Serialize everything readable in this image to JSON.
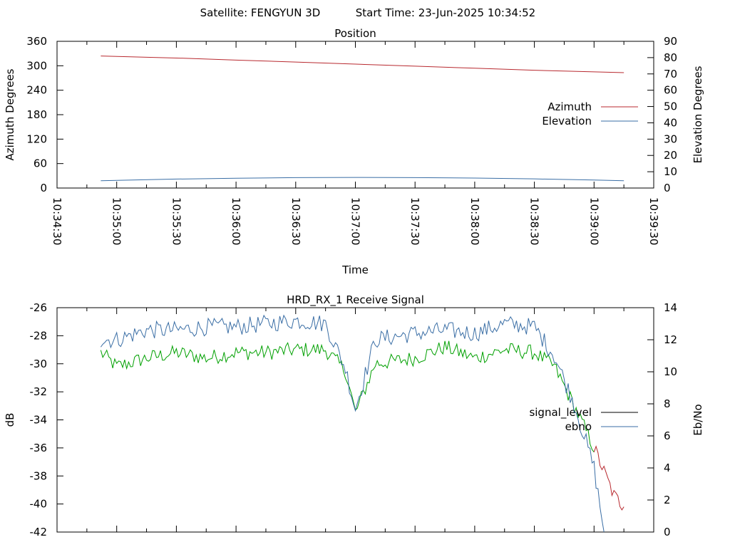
{
  "header": {
    "satellite_label": "Satellite: FENGYUN 3D",
    "start_time_label": "Start Time: 23-Jun-2025 10:34:52"
  },
  "chart_data": [
    {
      "type": "line",
      "title": "Position",
      "xlabel": "Time",
      "ylabel": "Azimuth Degrees",
      "y2label": "Elevation Degrees",
      "x_ticks": [
        "10:34:30",
        "10:35:00",
        "10:35:30",
        "10:36:00",
        "10:36:30",
        "10:37:00",
        "10:37:30",
        "10:38:00",
        "10:38:30",
        "10:39:00",
        "10:39:30"
      ],
      "xlim": [
        "10:34:30",
        "10:39:30"
      ],
      "ylim": [
        0,
        360
      ],
      "y_ticks": [
        0,
        60,
        120,
        180,
        240,
        300,
        360
      ],
      "y2lim": [
        0,
        90
      ],
      "y2_ticks": [
        0,
        10,
        20,
        30,
        40,
        50,
        60,
        70,
        80,
        90
      ],
      "legend_position": "right",
      "colors": {
        "Azimuth": "#b8292f",
        "Elevation": "#3a6ea5"
      },
      "series": [
        {
          "name": "Azimuth",
          "axis": "left",
          "x": [
            "10:34:52",
            "10:35:30",
            "10:36:00",
            "10:36:30",
            "10:37:00",
            "10:37:30",
            "10:38:00",
            "10:38:30",
            "10:39:00",
            "10:39:15"
          ],
          "values": [
            324,
            319,
            314,
            309,
            304,
            299,
            294,
            289,
            285,
            283
          ]
        },
        {
          "name": "Elevation",
          "axis": "right",
          "x": [
            "10:34:52",
            "10:35:30",
            "10:36:00",
            "10:36:30",
            "10:37:00",
            "10:37:30",
            "10:38:00",
            "10:38:30",
            "10:39:00",
            "10:39:15"
          ],
          "values": [
            4.5,
            5.5,
            6.0,
            6.4,
            6.5,
            6.4,
            6.1,
            5.6,
            4.9,
            4.5
          ]
        }
      ]
    },
    {
      "type": "line",
      "title": "HRD_RX_1 Receive Signal",
      "ylabel": "dB",
      "y2label": "Eb/No",
      "ylim": [
        -42,
        -26
      ],
      "y_ticks": [
        -42,
        -40,
        -38,
        -36,
        -34,
        -32,
        -30,
        -28,
        -26
      ],
      "y2lim": [
        0,
        14
      ],
      "y2_ticks": [
        0,
        2,
        4,
        6,
        8,
        10,
        12,
        14
      ],
      "legend_position": "right",
      "colors": {
        "signal_level": "#000000",
        "ebno": "#3a6ea5",
        "signal_trace": "#00a000",
        "signal_trace_tail": "#b8292f"
      },
      "series": [
        {
          "name": "signal_level",
          "axis": "left",
          "x": [
            "10:34:52",
            "10:35:00",
            "10:35:15",
            "10:35:30",
            "10:35:45",
            "10:36:00",
            "10:36:15",
            "10:36:30",
            "10:36:45",
            "10:36:55",
            "10:37:00",
            "10:37:10",
            "10:37:30",
            "10:37:45",
            "10:38:00",
            "10:38:15",
            "10:38:30",
            "10:38:40",
            "10:38:50",
            "10:39:00",
            "10:39:10",
            "10:39:15"
          ],
          "values": [
            -29.2,
            -30.2,
            -29.6,
            -29.2,
            -29.6,
            -29.2,
            -29.2,
            -29.0,
            -29.0,
            -30.5,
            -33.5,
            -30.0,
            -29.6,
            -28.8,
            -29.6,
            -29.0,
            -29.2,
            -30.2,
            -33.0,
            -36.0,
            -39.4,
            -40.2
          ]
        },
        {
          "name": "ebno",
          "axis": "right",
          "x": [
            "10:34:52",
            "10:35:00",
            "10:35:15",
            "10:35:30",
            "10:35:45",
            "10:36:00",
            "10:36:15",
            "10:36:30",
            "10:36:45",
            "10:36:55",
            "10:37:00",
            "10:37:10",
            "10:37:30",
            "10:37:45",
            "10:38:00",
            "10:38:15",
            "10:38:30",
            "10:38:40",
            "10:38:50",
            "10:39:00",
            "10:39:05"
          ],
          "values": [
            12.0,
            12.0,
            12.6,
            12.6,
            12.8,
            12.8,
            13.0,
            13.2,
            13.0,
            10.2,
            7.7,
            12.0,
            12.4,
            12.6,
            12.4,
            13.0,
            12.8,
            11.0,
            8.0,
            4.0,
            0.0
          ]
        }
      ]
    }
  ]
}
